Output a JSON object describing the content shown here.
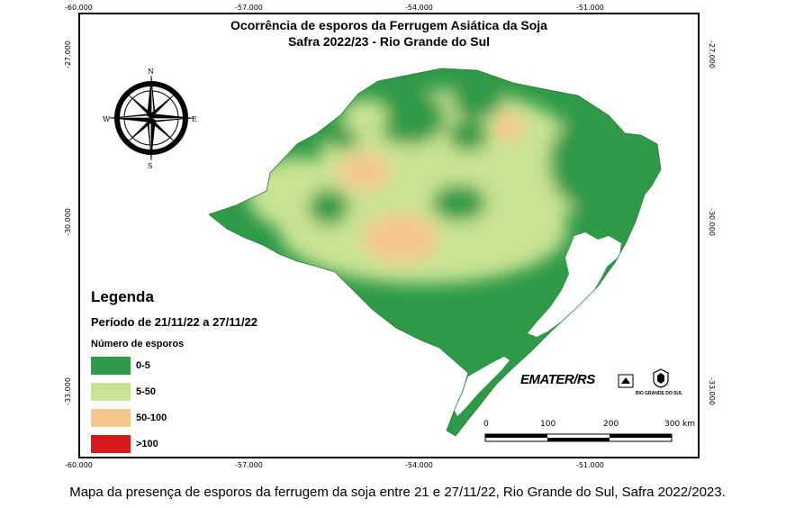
{
  "map": {
    "title_line1": "Ocorrência de esporos da Ferrugem Asiática da Soja",
    "title_line2": "Safra 2022/23 - Rio Grande do Sul",
    "lon_ticks": [
      "-60.000",
      "-57.000",
      "-54.000",
      "-51.000"
    ],
    "lat_ticks": [
      "-27.000",
      "-30.000",
      "-33.000"
    ]
  },
  "compass": {
    "n": "N",
    "s": "S",
    "e": "E",
    "w": "W"
  },
  "legend": {
    "title": "Legenda",
    "period": "Período de 21/11/22 a 27/11/22",
    "subtitle": "Número de esporos",
    "items": [
      {
        "label": "0-5",
        "color": "#2e9a47"
      },
      {
        "label": "5-50",
        "color": "#c9e394"
      },
      {
        "label": "50-100",
        "color": "#f6c88e"
      },
      {
        "label": ">100",
        "color": "#d7191c"
      }
    ]
  },
  "scale_bar": {
    "labels": [
      "0",
      "100",
      "200",
      "300 km"
    ]
  },
  "logos": {
    "emater": "EMATER/RS",
    "gov_line": "RIO GRANDE DO SUL"
  },
  "caption": "Mapa da presença de esporos da ferrugem da soja entre 21 e 27/11/22, Rio Grande do Sul, Safra 2022/2023."
}
